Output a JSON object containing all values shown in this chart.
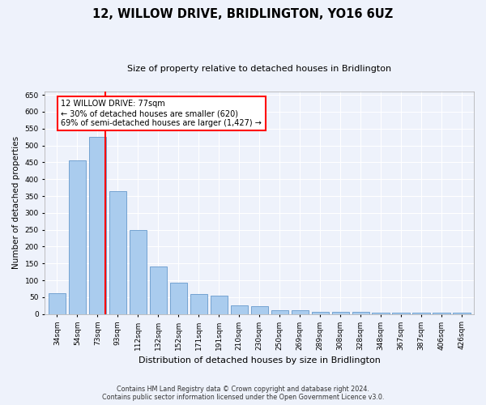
{
  "title": "12, WILLOW DRIVE, BRIDLINGTON, YO16 6UZ",
  "subtitle": "Size of property relative to detached houses in Bridlington",
  "xlabel": "Distribution of detached houses by size in Bridlington",
  "ylabel": "Number of detached properties",
  "categories": [
    "34sqm",
    "54sqm",
    "73sqm",
    "93sqm",
    "112sqm",
    "132sqm",
    "152sqm",
    "171sqm",
    "191sqm",
    "210sqm",
    "230sqm",
    "250sqm",
    "269sqm",
    "289sqm",
    "308sqm",
    "328sqm",
    "348sqm",
    "367sqm",
    "387sqm",
    "406sqm",
    "426sqm"
  ],
  "values": [
    62,
    455,
    525,
    365,
    248,
    140,
    93,
    60,
    55,
    25,
    22,
    10,
    12,
    7,
    7,
    6,
    5,
    5,
    5,
    5,
    4
  ],
  "bar_color": "#aaccee",
  "bar_edge_color": "#6699cc",
  "property_bar_index": 2,
  "property_line_label": "12 WILLOW DRIVE: 77sqm",
  "annotation_line1": "← 30% of detached houses are smaller (620)",
  "annotation_line2": "69% of semi-detached houses are larger (1,427) →",
  "annotation_box_color": "white",
  "annotation_box_edge_color": "red",
  "vline_color": "red",
  "ylim": [
    0,
    660
  ],
  "yticks": [
    0,
    50,
    100,
    150,
    200,
    250,
    300,
    350,
    400,
    450,
    500,
    550,
    600,
    650
  ],
  "footer1": "Contains HM Land Registry data © Crown copyright and database right 2024.",
  "footer2": "Contains public sector information licensed under the Open Government Licence v3.0.",
  "bg_color": "#eef2fb",
  "grid_color": "#ffffff",
  "title_fontsize": 10.5,
  "subtitle_fontsize": 8,
  "ylabel_fontsize": 7.5,
  "xlabel_fontsize": 8,
  "tick_fontsize": 6.5,
  "annot_fontsize": 7
}
